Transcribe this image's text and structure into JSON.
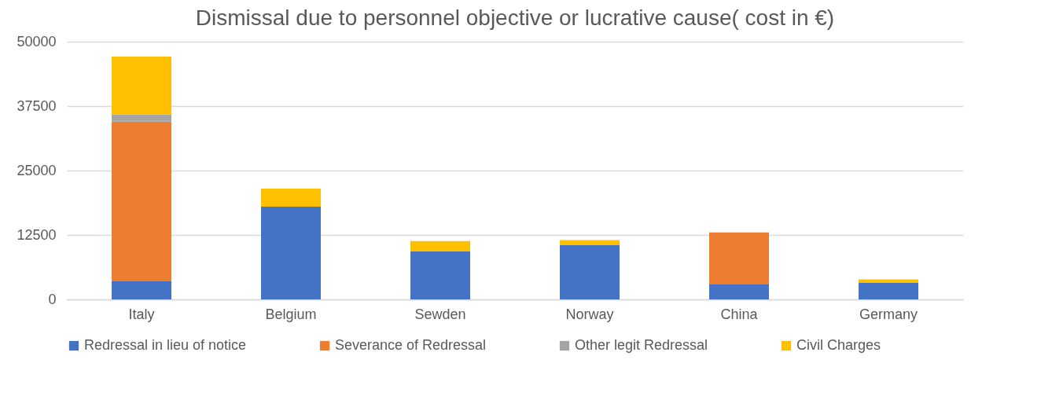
{
  "chart_data": {
    "type": "bar",
    "stacked": true,
    "title": "Dismissal due to  personnel objective or lucrative cause( cost in €)",
    "categories": [
      "Italy",
      "Belgium",
      "Sewden",
      "Norway",
      "China",
      "Germany"
    ],
    "series": [
      {
        "name": "Redressal in lieu of notice",
        "color": "#4472c4",
        "values": [
          3500,
          18000,
          9300,
          10500,
          3000,
          3200
        ]
      },
      {
        "name": "Severance of Redressal",
        "color": "#ed7d31",
        "values": [
          31000,
          null,
          null,
          null,
          10000,
          null
        ]
      },
      {
        "name": "Other legit Redressal",
        "color": "#a5a5a5",
        "values": [
          1400,
          null,
          null,
          null,
          null,
          null
        ]
      },
      {
        "name": "Civil Charges",
        "color": "#ffc000",
        "values": [
          11200,
          3500,
          2000,
          1000,
          null,
          700
        ]
      }
    ],
    "ylim": [
      0,
      50000
    ],
    "yticks": [
      0,
      12500,
      25000,
      37500,
      50000
    ],
    "grid": "y",
    "legend": "bottom"
  }
}
